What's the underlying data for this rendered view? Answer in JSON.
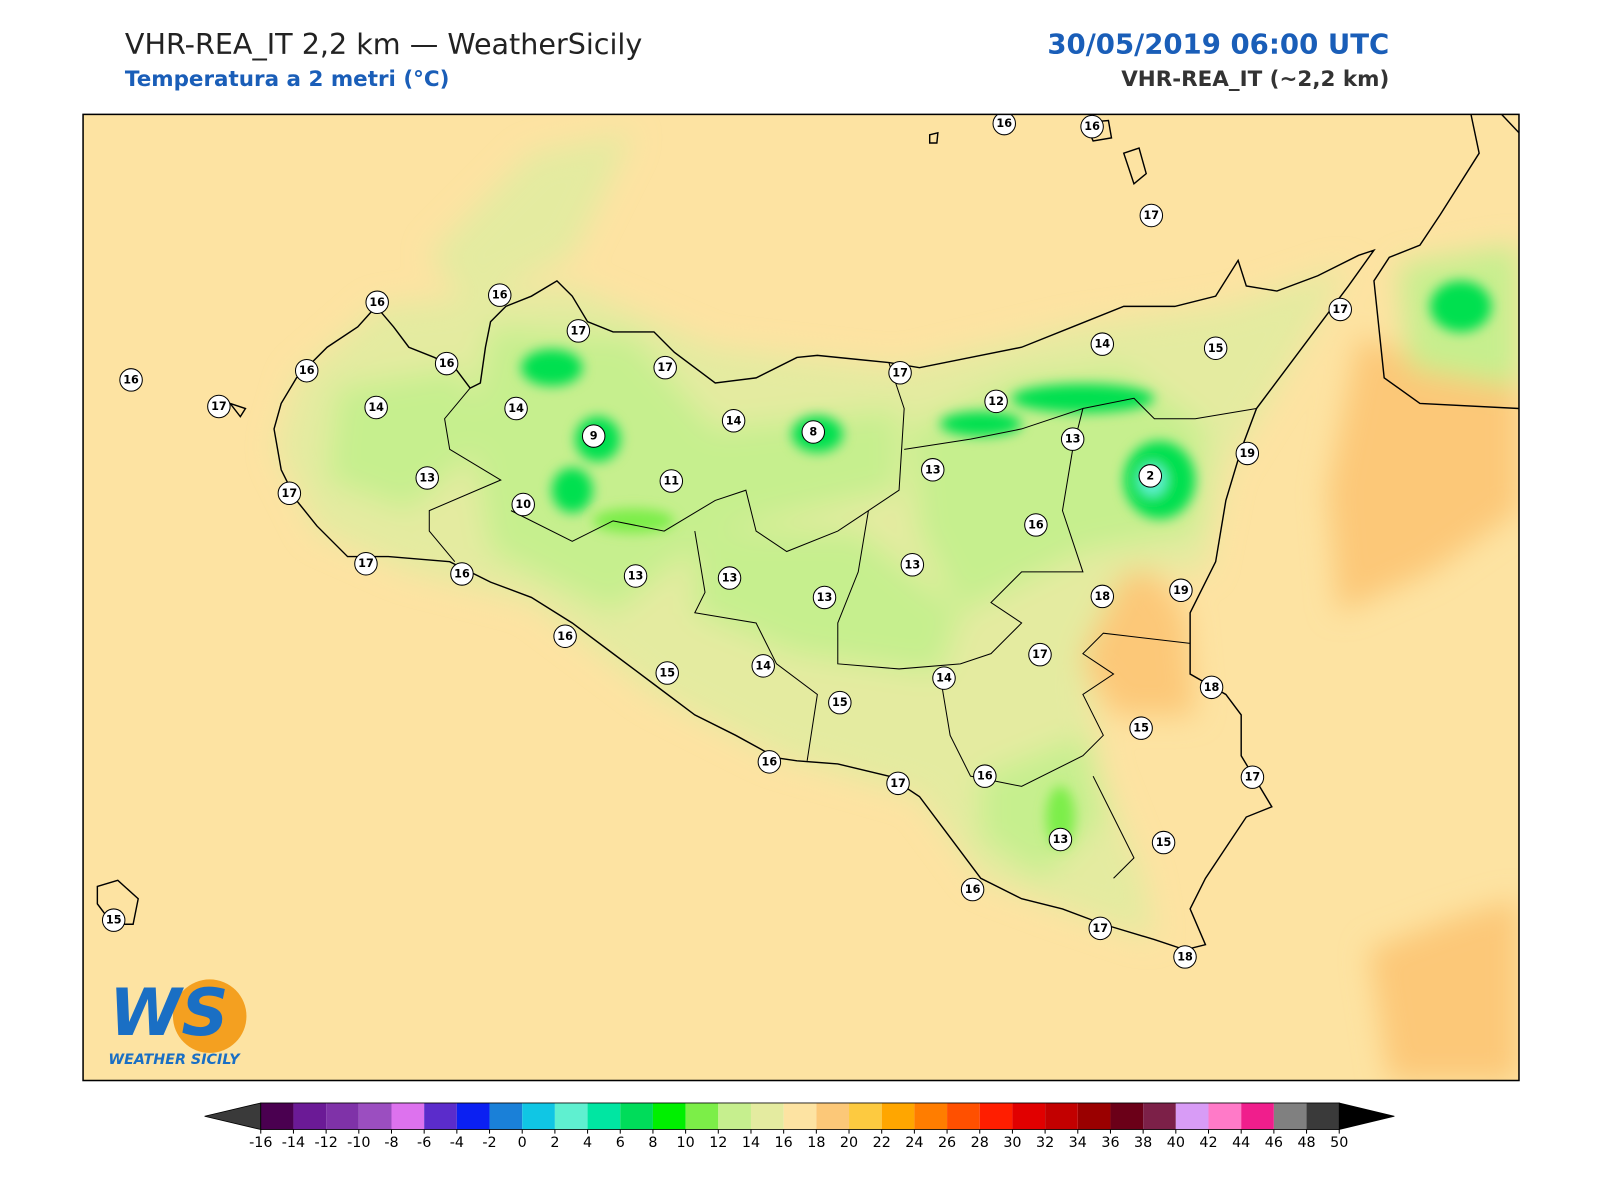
{
  "header": {
    "title": "VHR-REA_IT 2,2 km — WeatherSicily",
    "subtitle": "Temperatura a 2 metri (°C)",
    "datetime": "30/05/2019 06:00 UTC",
    "model": "VHR-REA_IT (~2,2 km)"
  },
  "stations": [
    16,
    16,
    17,
    16,
    16,
    17,
    16,
    16,
    16,
    17,
    17,
    14,
    15,
    17,
    17,
    14,
    14,
    14,
    12,
    9,
    8,
    13,
    19,
    13,
    2,
    13,
    11,
    17,
    10,
    16,
    17,
    16,
    13,
    13,
    13,
    13,
    18,
    19,
    16,
    17,
    15,
    14,
    14,
    15,
    18,
    15,
    16,
    17,
    16,
    17,
    13,
    15,
    16,
    15,
    17,
    18
  ],
  "colorbar": {
    "ticks": [
      -16,
      -14,
      -12,
      -10,
      -8,
      -6,
      -4,
      -2,
      0,
      2,
      4,
      6,
      8,
      10,
      12,
      14,
      16,
      18,
      20,
      22,
      24,
      26,
      28,
      30,
      32,
      34,
      36,
      38,
      40,
      42,
      44,
      46,
      48,
      50
    ],
    "colors": [
      "#4a0050",
      "#6b1a96",
      "#7f32a8",
      "#9b4ec0",
      "#dd72ee",
      "#5b2ccb",
      "#0b20f2",
      "#1a80d8",
      "#10c6e4",
      "#5ff0d0",
      "#00e6a2",
      "#00dc5a",
      "#00f000",
      "#7cee48",
      "#c6ef8e",
      "#e4eba0",
      "#fde3a2",
      "#fcc878",
      "#fdca40",
      "#ffa600",
      "#ff7d00",
      "#ff5000",
      "#ff1e00",
      "#e10000",
      "#c20000",
      "#9a0000",
      "#6b0018",
      "#7c2048",
      "#d89cf6",
      "#ff7ac8",
      "#f01e8c",
      "#808080",
      "#3a3a3a"
    ],
    "under": "#3a3a3a",
    "over": "#000000"
  },
  "logo": {
    "mark": "WS",
    "text": "WEATHER SICILY"
  }
}
